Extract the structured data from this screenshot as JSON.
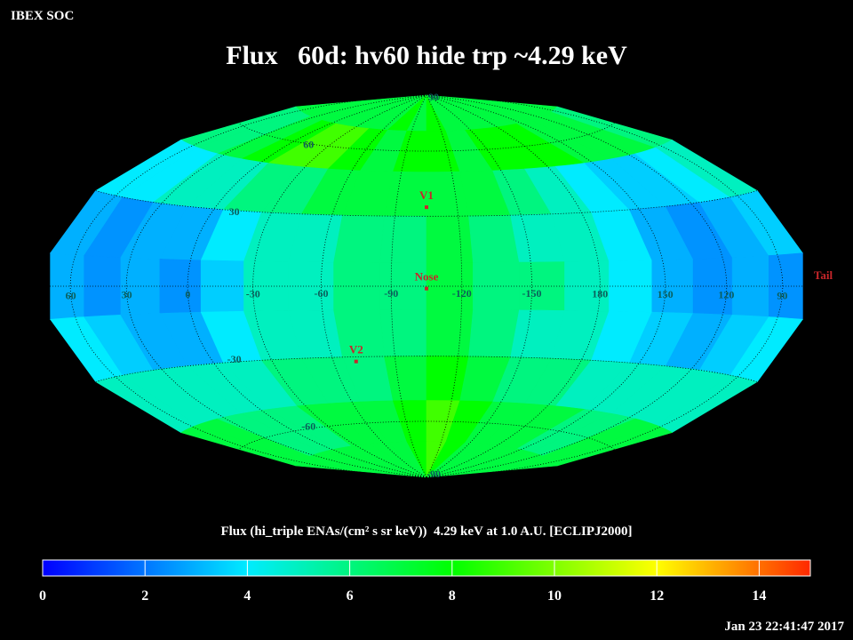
{
  "header": "IBEX SOC",
  "timestamp": "Jan 23 22:41:47 2017",
  "chart_data": {
    "type": "skymap",
    "title": "Flux   60d: hv60 hide trp ~4.29 keV",
    "colorbar_label": "Flux (hi_triple ENAs/(cm² s sr keV))  4.29 keV at 1.0 A.U. [ECLIPJ2000]",
    "clim": [
      0,
      15
    ],
    "cticks": [
      0,
      2,
      4,
      6,
      8,
      10,
      12,
      14
    ],
    "lat_ticks": [
      90,
      60,
      30,
      -30,
      -60,
      -90
    ],
    "lon_ticks": [
      60,
      30,
      0,
      -30,
      -60,
      -90,
      -120,
      -150,
      180,
      150,
      120,
      90
    ],
    "grid": true,
    "values": [
      [
        7,
        7,
        7,
        7,
        7,
        7,
        7,
        8,
        7,
        8,
        7,
        7,
        7,
        7,
        7,
        7,
        7,
        7
      ],
      [
        6,
        6,
        7,
        8,
        9,
        9,
        8,
        7,
        8,
        8,
        7,
        8,
        8,
        8,
        7,
        7,
        7,
        6
      ],
      [
        4,
        4,
        5,
        5,
        6,
        6,
        7,
        7,
        7,
        7,
        7,
        6,
        5,
        4,
        3.5,
        3.5,
        4,
        5
      ],
      [
        3,
        2.5,
        3,
        3,
        4,
        5,
        5,
        6,
        6,
        7,
        6,
        5,
        5,
        4,
        3,
        2.5,
        3,
        3.5
      ],
      [
        3,
        2.5,
        3,
        2.5,
        3.5,
        5,
        5,
        6,
        6,
        7,
        6,
        6,
        5,
        4,
        3,
        2.5,
        3,
        2.5
      ],
      [
        4,
        3.5,
        3,
        3,
        4,
        5,
        5,
        6,
        6,
        7,
        6,
        5,
        5,
        4,
        3.5,
        3,
        3.5,
        4
      ],
      [
        5,
        5,
        5,
        5,
        5,
        6,
        6,
        6,
        7,
        8,
        7,
        6,
        6,
        5,
        5,
        5,
        5,
        5
      ],
      [
        7,
        7,
        6,
        6,
        6,
        7,
        7,
        7,
        8,
        9,
        8,
        7,
        7,
        7,
        6,
        6,
        7,
        7
      ],
      [
        7,
        7,
        7,
        7,
        7,
        7,
        7,
        7,
        8,
        9,
        8,
        7,
        7,
        7,
        7,
        7,
        7,
        7
      ]
    ],
    "markers": [
      {
        "label": "V1",
        "lon": -105,
        "lat": 34
      },
      {
        "label": "Nose",
        "lon": -105,
        "lat": -1
      },
      {
        "label": "V2",
        "lon": -71,
        "lat": -32
      },
      {
        "label": "Tail",
        "lon": 75,
        "lat": 0
      }
    ]
  }
}
